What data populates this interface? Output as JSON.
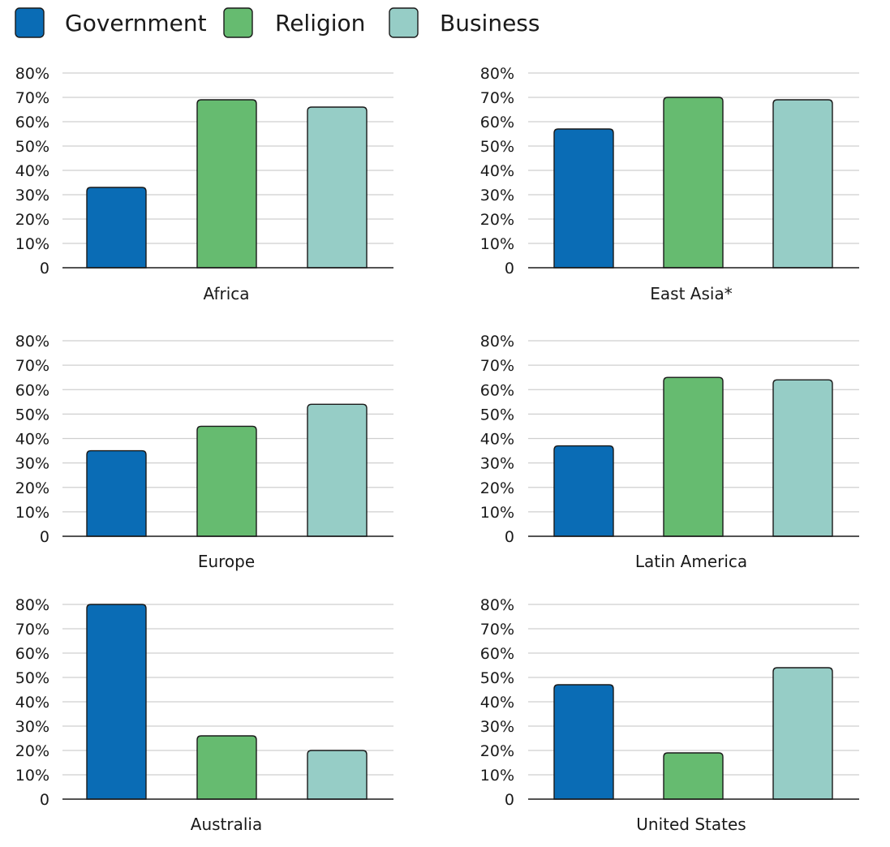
{
  "chart_data": {
    "type": "bar",
    "title": "",
    "ylabel": "",
    "ylim": [
      0,
      80
    ],
    "yticks": [
      {
        "value": 0,
        "label": "0"
      },
      {
        "value": 10,
        "label": "10%"
      },
      {
        "value": 20,
        "label": "20%"
      },
      {
        "value": 30,
        "label": "30%"
      },
      {
        "value": 40,
        "label": "40%"
      },
      {
        "value": 50,
        "label": "50%"
      },
      {
        "value": 60,
        "label": "60%"
      },
      {
        "value": 70,
        "label": "70%"
      },
      {
        "value": 80,
        "label": "80%"
      }
    ],
    "grid": true,
    "legend": {
      "placement": "top-left",
      "entries": [
        {
          "name": "Government",
          "color": "#0a6cb5"
        },
        {
          "name": "Religion",
          "color": "#66bb70"
        },
        {
          "name": "Business",
          "color": "#96cdc6"
        }
      ]
    },
    "panels": [
      {
        "title": "Africa",
        "values": [
          33,
          69,
          66
        ]
      },
      {
        "title": "East Asia*",
        "values": [
          57,
          70,
          69
        ]
      },
      {
        "title": "Europe",
        "values": [
          35,
          45,
          54
        ]
      },
      {
        "title": "Latin America",
        "values": [
          37,
          65,
          64
        ]
      },
      {
        "title": "Australia",
        "values": [
          80,
          26,
          20
        ]
      },
      {
        "title": "United States",
        "values": [
          47,
          19,
          54
        ]
      }
    ]
  }
}
